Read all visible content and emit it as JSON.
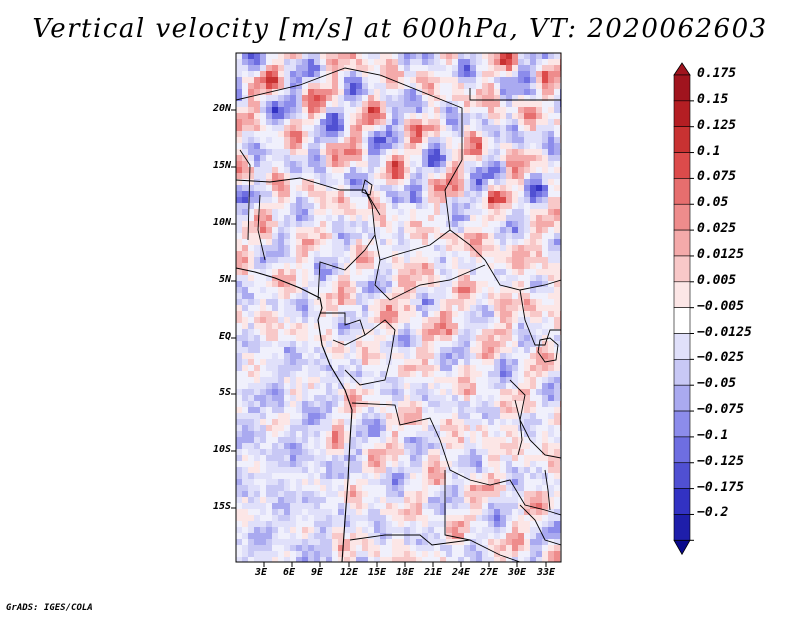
{
  "title": "Vertical velocity [m/s] at 600hPa, VT: 2020062603",
  "credit": "GrADS: IGES/COLA",
  "map": {
    "lat_labels": [
      "20N",
      "15N",
      "10N",
      "5N",
      "EQ",
      "5S",
      "10S",
      "15S"
    ],
    "lon_labels": [
      "3E",
      "6E",
      "9E",
      "12E",
      "15E",
      "18E",
      "21E",
      "24E",
      "27E",
      "30E",
      "33E"
    ]
  },
  "colorbar": {
    "labels": [
      "0.175",
      "0.15",
      "0.125",
      "0.1",
      "0.075",
      "0.05",
      "0.025",
      "0.0125",
      "0.005",
      "−0.005",
      "−0.0125",
      "−0.025",
      "−0.05",
      "−0.075",
      "−0.1",
      "−0.125",
      "−0.175",
      "−0.2"
    ],
    "colors": [
      "#a0141e",
      "#b41e23",
      "#c83232",
      "#dc4b4b",
      "#e66e6e",
      "#ee8c8c",
      "#f4aaaa",
      "#f8c8c8",
      "#fce6e6",
      "#ffffff",
      "#e0e0fa",
      "#c8c8f5",
      "#aaaaf0",
      "#8c8ceb",
      "#6e6ee1",
      "#5050d2",
      "#3232c3",
      "#1e1eaa",
      "#0a0a8c"
    ]
  }
}
